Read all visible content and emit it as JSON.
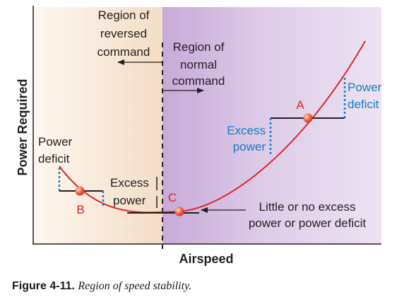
{
  "diagram": {
    "y_axis_label": "Power Required",
    "x_axis_label": "Airspeed",
    "region_reversed": [
      "Region of",
      "reversed",
      "command"
    ],
    "region_normal": [
      "Region of",
      "normal",
      "command"
    ],
    "left_power_deficit": [
      "Power",
      "deficit"
    ],
    "left_excess_power": [
      "Excess",
      "power"
    ],
    "right_excess_power": [
      "Excess",
      "power"
    ],
    "right_power_deficit": [
      "Power",
      "deficit"
    ],
    "little_or_no": [
      "Little or no excess",
      "power or power deficit"
    ],
    "point_labels": {
      "a": "A",
      "b": "B",
      "c": "C"
    }
  },
  "caption": {
    "figure_number": "Figure 4-11.",
    "text": "Region of speed stability."
  },
  "colors": {
    "curve": "#e0242a",
    "point": "#e8483a",
    "deficit_text": "#1a7cc2",
    "axis": "#231f20",
    "left_region": "#f6e4d0",
    "right_region": "#d8c3e3"
  }
}
